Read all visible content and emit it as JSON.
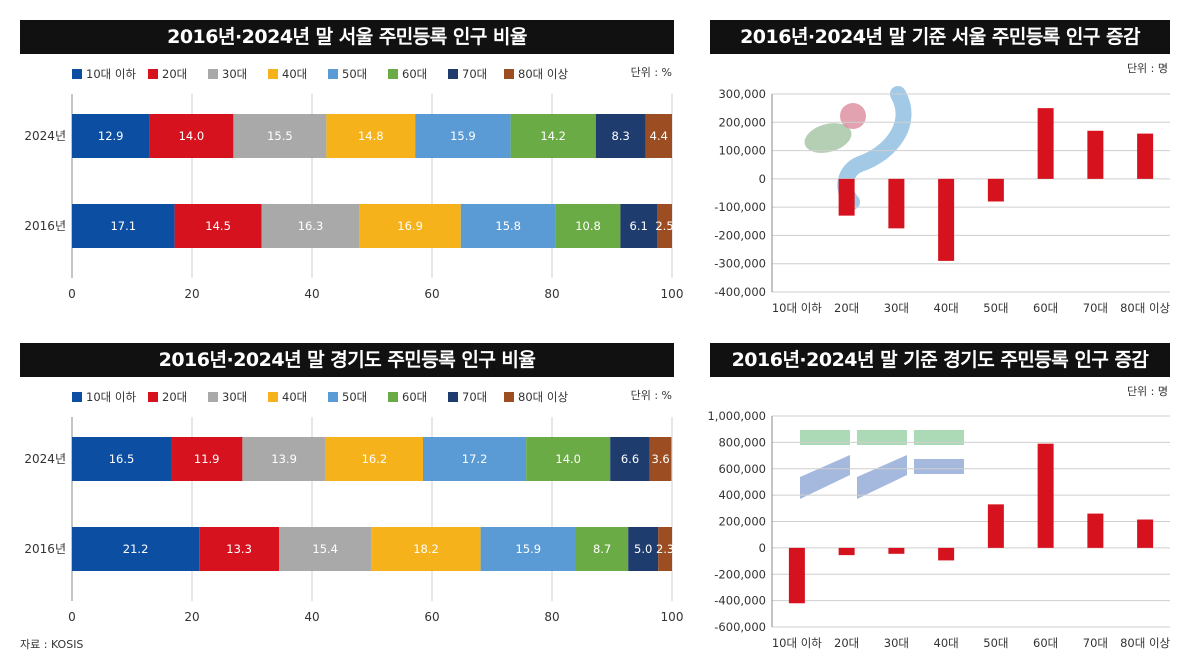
{
  "source": "자료 : KOSIS",
  "colors": {
    "10대 이하": "#0b4ea2",
    "20대": "#d6121f",
    "30대": "#a9a9a9",
    "40대": "#f5b21b",
    "50대": "#5b9bd5",
    "60대": "#6aab45",
    "70대": "#1f3c6e",
    "80대 이상": "#9c4d22",
    "change_bar": "#d6121f"
  },
  "chart_data": [
    {
      "type": "bar",
      "orientation": "horizontal-stacked",
      "title": "2016년·2024년 말 서울 주민등록 인구 비율",
      "unit": "단위 : %",
      "legend": [
        "10대 이하",
        "20대",
        "30대",
        "40대",
        "50대",
        "60대",
        "70대",
        "80대 이상"
      ],
      "categories": [
        "2024년",
        "2016년"
      ],
      "series": [
        {
          "name": "10대 이하",
          "values": [
            12.9,
            17.1
          ]
        },
        {
          "name": "20대",
          "values": [
            14.0,
            14.5
          ]
        },
        {
          "name": "30대",
          "values": [
            15.5,
            16.3
          ]
        },
        {
          "name": "40대",
          "values": [
            14.8,
            16.9
          ]
        },
        {
          "name": "50대",
          "values": [
            15.9,
            15.8
          ]
        },
        {
          "name": "60대",
          "values": [
            14.2,
            10.8
          ]
        },
        {
          "name": "70대",
          "values": [
            8.3,
            6.1
          ]
        },
        {
          "name": "80대 이상",
          "values": [
            4.4,
            2.5
          ]
        }
      ],
      "labels": [
        [
          "12.9",
          "14.0",
          "15.5",
          "14.8",
          "15.9",
          "14.2",
          "8.3",
          "4.4"
        ],
        [
          "17.1",
          "14.5",
          "16.3",
          "16.9",
          "15.8",
          "10.8",
          "6.1",
          "2.5"
        ]
      ],
      "xlim": [
        0,
        100
      ],
      "xticks": [
        "0",
        "20",
        "40",
        "60",
        "80",
        "100"
      ],
      "grid": true
    },
    {
      "type": "bar",
      "title": "2016년·2024년 말 기준 서울 주민등록 인구 증감",
      "unit": "단위 : 명",
      "categories": [
        "10대 이하",
        "20대",
        "30대",
        "40대",
        "50대",
        "60대",
        "70대",
        "80대 이상"
      ],
      "values": [
        0,
        -130000,
        -175000,
        -290000,
        -80000,
        250000,
        170000,
        160000
      ],
      "ylim": [
        -400000,
        300000
      ],
      "yticks": [
        "300,000",
        "200,000",
        "100,000",
        "0",
        "-100,000",
        "-200,000",
        "-300,000",
        "-400,000"
      ],
      "grid": true
    },
    {
      "type": "bar",
      "orientation": "horizontal-stacked",
      "title": "2016년·2024년 말 경기도 주민등록 인구 비율",
      "unit": "단위 : %",
      "legend": [
        "10대 이하",
        "20대",
        "30대",
        "40대",
        "50대",
        "60대",
        "70대",
        "80대 이상"
      ],
      "categories": [
        "2024년",
        "2016년"
      ],
      "series": [
        {
          "name": "10대 이하",
          "values": [
            16.5,
            21.2
          ]
        },
        {
          "name": "20대",
          "values": [
            11.9,
            13.3
          ]
        },
        {
          "name": "30대",
          "values": [
            13.9,
            15.4
          ]
        },
        {
          "name": "40대",
          "values": [
            16.2,
            18.2
          ]
        },
        {
          "name": "50대",
          "values": [
            17.2,
            15.9
          ]
        },
        {
          "name": "60대",
          "values": [
            14.0,
            8.7
          ]
        },
        {
          "name": "70대",
          "values": [
            6.6,
            5.0
          ]
        },
        {
          "name": "80대 이상",
          "values": [
            3.6,
            2.3
          ]
        }
      ],
      "labels": [
        [
          "16.5",
          "11.9",
          "13.9",
          "16.2",
          "17.2",
          "14.0",
          "6.6",
          "3.6"
        ],
        [
          "21.2",
          "13.3",
          "15.4",
          "18.2",
          "15.9",
          "8.7",
          "5.0",
          "2.3"
        ]
      ],
      "xlim": [
        0,
        100
      ],
      "xticks": [
        "0",
        "20",
        "40",
        "60",
        "80",
        "100"
      ],
      "grid": true
    },
    {
      "type": "bar",
      "title": "2016년·2024년 말 기준 경기도 주민등록 인구 증감",
      "unit": "단위 : 명",
      "categories": [
        "10대 이하",
        "20대",
        "30대",
        "40대",
        "50대",
        "60대",
        "70대",
        "80대 이상"
      ],
      "values": [
        -420000,
        -55000,
        -45000,
        -95000,
        330000,
        790000,
        260000,
        215000
      ],
      "ylim": [
        -600000,
        1000000
      ],
      "yticks": [
        "1,000,000",
        "800,000",
        "600,000",
        "400,000",
        "200,000",
        "0",
        "-200,000",
        "-400,000",
        "-600,000"
      ],
      "grid": true
    }
  ]
}
